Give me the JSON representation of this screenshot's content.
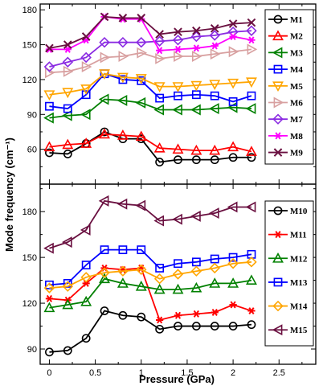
{
  "chart_data": [
    {
      "type": "line",
      "x": [
        0,
        0.2,
        0.4,
        0.6,
        0.8,
        1.0,
        1.2,
        1.4,
        1.6,
        1.8,
        2.0,
        2.2
      ],
      "ylim": [
        30,
        185
      ],
      "yticks": [
        60,
        90,
        120,
        150,
        180
      ],
      "series": [
        {
          "name": "M1",
          "color": "#000000",
          "marker": "circle",
          "values": [
            57,
            56,
            65,
            75,
            69,
            69,
            49,
            51,
            51,
            51,
            53,
            53
          ]
        },
        {
          "name": "M2",
          "color": "#ff0000",
          "marker": "triangle-up",
          "values": [
            62,
            64,
            65,
            73,
            72,
            71,
            61,
            60,
            59,
            59,
            62,
            58
          ]
        },
        {
          "name": "M3",
          "color": "#008000",
          "marker": "triangle-left",
          "values": [
            87,
            89,
            90,
            103,
            102,
            100,
            94,
            94,
            94,
            95,
            96,
            95
          ]
        },
        {
          "name": "M4",
          "color": "#0000ff",
          "marker": "square",
          "values": [
            97,
            95,
            107,
            125,
            120,
            119,
            104,
            106,
            107,
            106,
            101,
            106
          ]
        },
        {
          "name": "M5",
          "color": "#ffa500",
          "marker": "triangle-down",
          "values": [
            107,
            109,
            112,
            125,
            122,
            121,
            114,
            114,
            115,
            116,
            117,
            118
          ]
        },
        {
          "name": "M6",
          "color": "#d8a0a0",
          "marker": "triangle-right",
          "values": [
            126,
            127,
            131,
            139,
            140,
            143,
            138,
            140,
            140,
            142,
            144,
            146
          ]
        },
        {
          "name": "M7",
          "color": "#8a2be2",
          "marker": "diamond",
          "values": [
            131,
            135,
            139,
            152,
            152,
            152,
            153,
            154,
            157,
            158,
            161,
            162
          ]
        },
        {
          "name": "M8",
          "color": "#ff00ff",
          "marker": "asterisk",
          "values": [
            146,
            146,
            154,
            174,
            172,
            172,
            145,
            146,
            147,
            149,
            157,
            154
          ]
        },
        {
          "name": "M9",
          "color": "#6a1040",
          "marker": "x",
          "values": [
            147,
            150,
            157,
            174,
            173,
            173,
            159,
            161,
            162,
            164,
            168,
            169
          ]
        }
      ]
    },
    {
      "type": "line",
      "x": [
        0,
        0.2,
        0.4,
        0.6,
        0.8,
        1.0,
        1.2,
        1.4,
        1.6,
        1.8,
        2.0,
        2.2
      ],
      "xlim": [
        -0.1,
        2.9
      ],
      "xticks": [
        "0",
        "0.5",
        "1",
        "1.5",
        "2",
        "2.5"
      ],
      "xlabel": "Pressure (GPa)",
      "ylim": [
        80,
        198
      ],
      "yticks": [
        90,
        120,
        150,
        180
      ],
      "series": [
        {
          "name": "M10",
          "color": "#000000",
          "marker": "circle",
          "values": [
            88,
            89,
            97,
            115,
            112,
            111,
            103,
            105,
            105,
            105,
            105,
            106
          ]
        },
        {
          "name": "M11",
          "color": "#ff0000",
          "marker": "asterisk",
          "values": [
            123,
            122,
            133,
            143,
            142,
            143,
            109,
            112,
            113,
            114,
            119,
            115
          ]
        },
        {
          "name": "M12",
          "color": "#008000",
          "marker": "triangle-up",
          "values": [
            117,
            119,
            121,
            136,
            133,
            131,
            129,
            129,
            130,
            133,
            133,
            135
          ]
        },
        {
          "name": "M13",
          "color": "#0000ff",
          "marker": "square",
          "values": [
            132,
            133,
            145,
            155,
            155,
            155,
            143,
            146,
            147,
            149,
            150,
            152
          ]
        },
        {
          "name": "M14",
          "color": "#ffa500",
          "marker": "diamond",
          "values": [
            130,
            131,
            137,
            140,
            141,
            142,
            136,
            139,
            141,
            143,
            146,
            147
          ]
        },
        {
          "name": "M15",
          "color": "#6a1040",
          "marker": "triangle-left",
          "values": [
            156,
            160,
            168,
            187,
            185,
            184,
            174,
            175,
            177,
            179,
            183,
            183
          ]
        }
      ]
    }
  ],
  "ylabel_shared": "Mode frequency (cm⁻¹)"
}
